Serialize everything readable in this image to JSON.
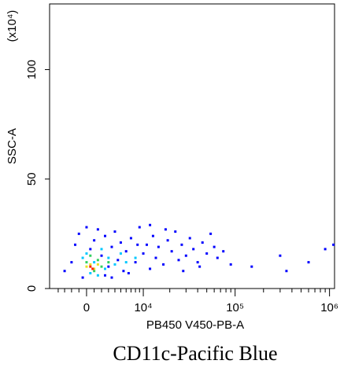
{
  "chart_data": {
    "type": "scatter",
    "title": "CD11c-Pacific Blue",
    "xlabel": "PB450 V450-PB-A",
    "ylabel": "SSC-A",
    "y_multiplier": "(x10⁴)",
    "xscale": "biexponential",
    "xlim": [
      -5500,
      1130000
    ],
    "ylim": [
      0,
      130
    ],
    "xticks": [
      0,
      {
        "value": 10000,
        "label": "10⁴"
      },
      {
        "value": 100000,
        "label": "10⁵"
      },
      {
        "value": 1000000,
        "label": "10⁶"
      }
    ],
    "xminorticks": [
      -4000,
      -3000,
      -2000,
      -1000,
      1000,
      2000,
      3000,
      4000,
      5000,
      6000,
      7000,
      8000,
      9000,
      20000,
      30000,
      40000,
      50000,
      60000,
      70000,
      80000,
      90000,
      200000,
      300000,
      400000,
      500000,
      600000,
      700000,
      800000,
      900000
    ],
    "yticks": [
      0,
      50,
      100
    ],
    "series": [
      {
        "color": "#0000ff",
        "x": [
          -3000,
          -2000,
          -1500,
          -1000,
          -500,
          0,
          500,
          1000,
          1500,
          2000,
          2500,
          3000,
          3500,
          4000,
          4500,
          5000,
          5500,
          6000,
          7000,
          8000,
          9000,
          10000,
          11000,
          12000,
          13000,
          14000,
          15000,
          17000,
          19000,
          21000,
          23000,
          25000,
          27000,
          30000,
          33000,
          36000,
          40000,
          45000,
          50000,
          55000,
          60000,
          65000,
          2500,
          3500,
          6500,
          8500,
          12000,
          18000,
          28000,
          42000,
          75000,
          90000,
          150000,
          300000,
          600000,
          900000,
          1100000,
          350000
        ],
        "y": [
          8,
          12,
          20,
          25,
          5,
          28,
          18,
          22,
          27,
          15,
          24,
          10,
          19,
          26,
          13,
          21,
          8,
          17,
          23,
          12,
          28,
          16,
          20,
          9,
          24,
          14,
          19,
          11,
          22,
          17,
          26,
          13,
          20,
          15,
          23,
          18,
          12,
          21,
          16,
          25,
          19,
          14,
          6,
          5,
          7,
          20,
          29,
          27,
          8,
          10,
          17,
          11,
          10,
          15,
          12,
          18,
          20,
          8
        ]
      },
      {
        "color": "#00c8ff",
        "x": [
          -500,
          0,
          500,
          1000,
          1500,
          2000,
          2500,
          3000,
          4000,
          5000,
          6000,
          8000
        ],
        "y": [
          14,
          16,
          7,
          12,
          6,
          18,
          9,
          14,
          11,
          16,
          12,
          14
        ]
      },
      {
        "color": "#30d060",
        "x": [
          0,
          500,
          1000,
          1500,
          2000,
          3000
        ],
        "y": [
          12,
          15,
          8,
          13,
          10,
          12
        ]
      },
      {
        "color": "#e8e020",
        "x": [
          0,
          500,
          1000,
          1500
        ],
        "y": [
          10,
          11,
          9,
          11
        ]
      },
      {
        "color": "#ff2000",
        "x": [
          500,
          800
        ],
        "y": [
          10,
          9
        ]
      }
    ]
  }
}
